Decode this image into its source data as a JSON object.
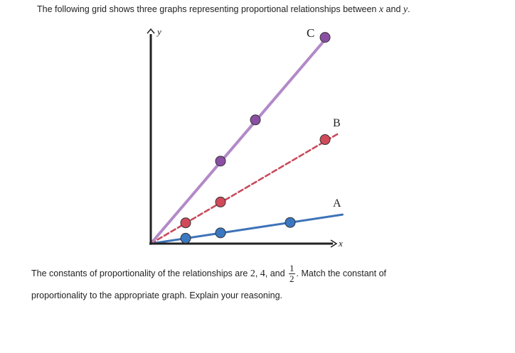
{
  "intro": {
    "text_before": "The following grid shows three graphs representing proportional relationships between ",
    "var_x": "x",
    "and_text": " and ",
    "var_y": "y",
    "end": "."
  },
  "axes": {
    "x_label": "x",
    "y_label": "y"
  },
  "colors": {
    "line_a": "#3e73b8",
    "line_b": "#c94a5c",
    "line_c": "#b389c8",
    "point_a": "#3a78c2",
    "point_b": "#d04a5a",
    "point_c": "#8a4fa3",
    "axis": "#222222"
  },
  "chart_data": {
    "type": "line",
    "xlim": [
      0,
      5.5
    ],
    "ylim": [
      0,
      6
    ],
    "series": [
      {
        "name": "A",
        "style": "solid",
        "line": [
          [
            0,
            0
          ],
          [
            5.5,
            0.81
          ]
        ],
        "points": [
          [
            1,
            0.15
          ],
          [
            2,
            0.3
          ],
          [
            4,
            0.59
          ]
        ]
      },
      {
        "name": "B",
        "style": "dashed",
        "line": [
          [
            0,
            0
          ],
          [
            5.4,
            3.08
          ]
        ],
        "points": [
          [
            1,
            0.58
          ],
          [
            2,
            1.16
          ],
          [
            5,
            2.9
          ]
        ]
      },
      {
        "name": "C",
        "style": "solid",
        "line": [
          [
            0,
            0
          ],
          [
            5.1,
            5.8
          ]
        ],
        "points": [
          [
            2,
            2.3
          ],
          [
            3,
            3.45
          ],
          [
            5,
            5.75
          ]
        ]
      }
    ]
  },
  "question": {
    "part1": "The constants of proportionality of the relationships are ",
    "v1": "2",
    "comma1": ", ",
    "v2": "4",
    "comma2": ", and ",
    "frac_num": "1",
    "frac_den": "2",
    "part2": ". Match the constant of",
    "line2": "proportionality to the appropriate graph. Explain your reasoning."
  }
}
